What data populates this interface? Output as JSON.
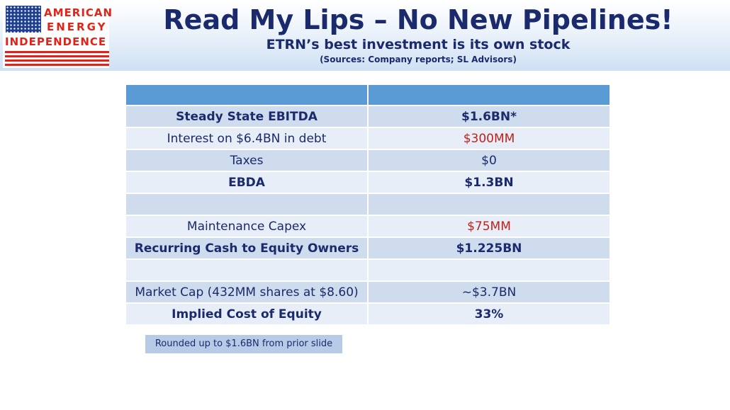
{
  "logo": {
    "line1": "AMERICAN",
    "line2": "ENERGY",
    "line3": "INDEPENDENCE"
  },
  "header": {
    "title": "Read My Lips – No New Pipelines!",
    "subtitle": "ETRN’s best investment is its own stock",
    "sources": "(Sources: Company reports; SL Advisors)"
  },
  "table": {
    "header": [
      "",
      ""
    ],
    "rows": [
      {
        "label": "Steady State EBITDA",
        "value": "$1.6BN*"
      },
      {
        "label": "Interest on $6.4BN in debt",
        "value": "$300MM"
      },
      {
        "label": "Taxes",
        "value": "$0"
      },
      {
        "label": "EBDA",
        "value": "$1.3BN"
      },
      {
        "label": "",
        "value": ""
      },
      {
        "label": "Maintenance Capex",
        "value": "$75MM"
      },
      {
        "label": "Recurring Cash to Equity Owners",
        "value": "$1.225BN"
      },
      {
        "label": "",
        "value": ""
      },
      {
        "label": "Market Cap (432MM shares at $8.60)",
        "value": "~$3.7BN"
      },
      {
        "label": "Implied Cost of Equity",
        "value": "33%"
      }
    ]
  },
  "footnote": "Rounded up to $1.6BN from prior slide",
  "colors": {
    "navy": "#1a2a6c",
    "red": "#c0201c",
    "header_blue": "#5b9bd5",
    "row_dark": "#cfdcee",
    "row_light": "#e8eef7",
    "logo_red": "#e2231a"
  }
}
